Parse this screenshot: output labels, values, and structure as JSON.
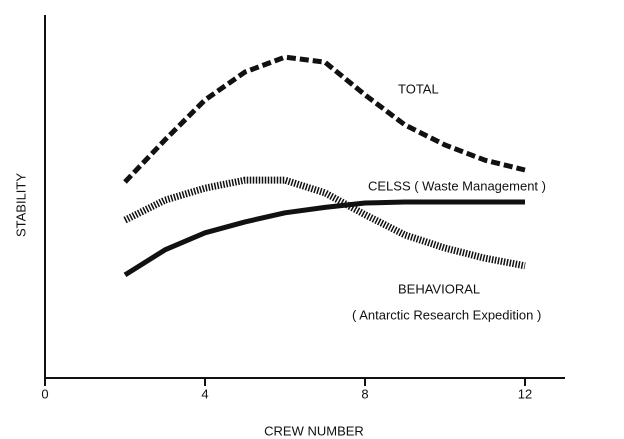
{
  "chart_data": {
    "type": "line",
    "xlabel": "CREW NUMBER",
    "ylabel": "STABILITY",
    "x": [
      2,
      3,
      4,
      5,
      6,
      7,
      8,
      9,
      10,
      11,
      12
    ],
    "series": [
      {
        "name": "TOTAL",
        "color": "#111111",
        "style": "dashed",
        "values": [
          54,
          65.6,
          76.6,
          84.3,
          88.4,
          87,
          78,
          69.7,
          64.2,
          60,
          57.3
        ]
      },
      {
        "name": "CELSS ( Waste Management )",
        "color": "#111111",
        "style": "solid",
        "values": [
          28.4,
          35.3,
          40,
          43,
          45.5,
          47,
          48.2,
          48.5,
          48.5,
          48.5,
          48.5
        ]
      },
      {
        "name": "BEHAVIORAL",
        "color": "#111111",
        "style": "dotted",
        "values": [
          43.5,
          49,
          52.3,
          54.5,
          54.5,
          51,
          45,
          39.4,
          35.8,
          33,
          30.9
        ]
      }
    ],
    "annotations": [
      "( Antarctic Research Expedition )"
    ],
    "xlim": [
      0,
      13
    ],
    "xticks": [
      0,
      4,
      8,
      12
    ],
    "ylim": [
      0,
      100
    ]
  }
}
